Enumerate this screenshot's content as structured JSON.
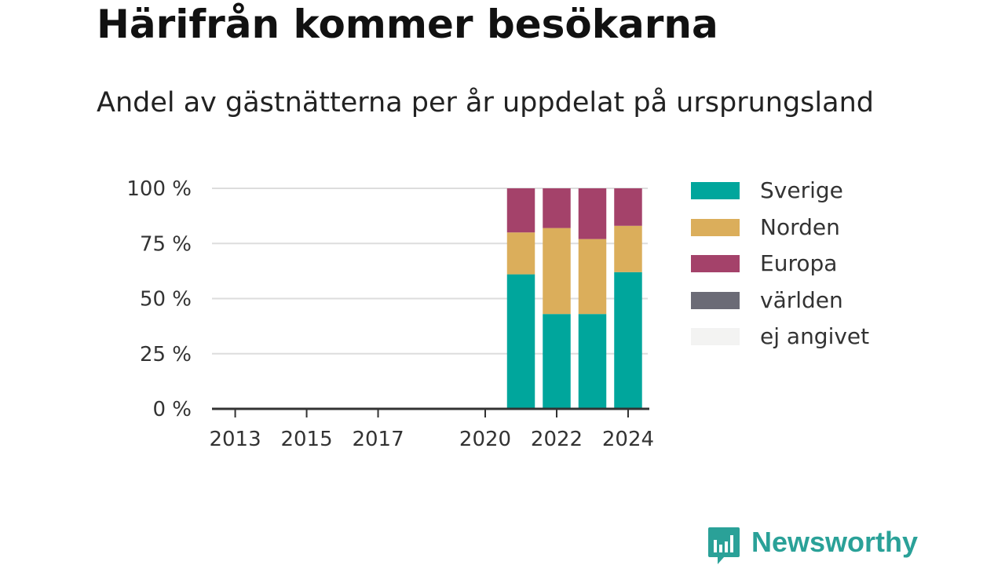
{
  "title": "Härifrån kommer besökarna",
  "subtitle": "Andel av gästnätterna per år uppdelat på ursprungsland",
  "logo": {
    "text": "Newsworthy",
    "icon": "bar-chart-speech-bubble-icon"
  },
  "colors": {
    "sverige": "#00a69c",
    "norden": "#dbae5b",
    "europa": "#a4426a",
    "varlden": "#6b6b76",
    "ej_angivet": "#f3f3f2",
    "grid": "#dddddd",
    "axis": "#333333",
    "logo": "#2aa198"
  },
  "legend": [
    {
      "label": "Sverige",
      "color": "#00a69c"
    },
    {
      "label": "Norden",
      "color": "#dbae5b"
    },
    {
      "label": "Europa",
      "color": "#a4426a"
    },
    {
      "label": "världen",
      "color": "#6b6b76"
    },
    {
      "label": "ej angivet",
      "color": "#f3f3f2"
    }
  ],
  "chart_data": {
    "type": "bar",
    "stacked": true,
    "title": "Härifrån kommer besökarna",
    "subtitle": "Andel av gästnätterna per år uppdelat på ursprungsland",
    "xlabel": "",
    "ylabel": "",
    "categories": [
      2013,
      2014,
      2015,
      2016,
      2017,
      2018,
      2019,
      2020,
      2021,
      2022,
      2023,
      2024
    ],
    "x_tick_labels": [
      "2013",
      "2015",
      "2017",
      "2020",
      "2022",
      "2024"
    ],
    "x_tick_values": [
      2013,
      2015,
      2017,
      2020,
      2022,
      2024
    ],
    "x_range": [
      2012.35,
      2024.55
    ],
    "y_tick_labels": [
      "0 %",
      "25 %",
      "50 %",
      "75 %",
      "100 %"
    ],
    "y_tick_values": [
      0,
      25,
      50,
      75,
      100
    ],
    "ylim": [
      0,
      100
    ],
    "grid": true,
    "legend_position": "right",
    "series": [
      {
        "name": "Sverige",
        "color": "#00a69c",
        "values": [
          null,
          null,
          null,
          null,
          null,
          null,
          null,
          null,
          61,
          43,
          43,
          62
        ]
      },
      {
        "name": "Norden",
        "color": "#dbae5b",
        "values": [
          null,
          null,
          null,
          null,
          null,
          null,
          null,
          null,
          19,
          39,
          34,
          21
        ]
      },
      {
        "name": "Europa",
        "color": "#a4426a",
        "values": [
          null,
          null,
          null,
          null,
          null,
          null,
          null,
          null,
          20,
          18,
          23,
          17
        ]
      },
      {
        "name": "världen",
        "color": "#6b6b76",
        "values": [
          null,
          null,
          null,
          null,
          null,
          null,
          null,
          null,
          0,
          0,
          0,
          0
        ]
      },
      {
        "name": "ej angivet",
        "color": "#f3f3f2",
        "values": [
          null,
          null,
          null,
          null,
          null,
          null,
          null,
          null,
          0,
          0,
          0,
          0
        ]
      }
    ]
  }
}
